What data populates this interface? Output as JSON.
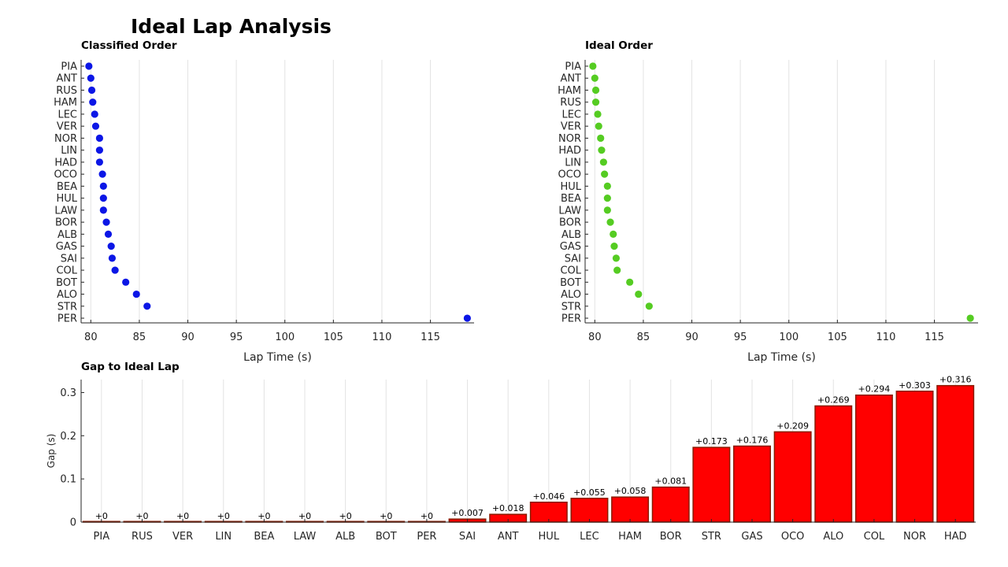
{
  "title": "Ideal Lap Analysis",
  "colors": {
    "classified": "#0b16e6",
    "ideal": "#55cc22",
    "bar": "#ff0000",
    "bar_edge": "#8b1a00"
  },
  "chart_data": [
    {
      "type": "scatter",
      "title": "Classified Order",
      "xlabel": "Lap Time (s)",
      "ylabel": "",
      "xlim": [
        79,
        119.5
      ],
      "xticks": [
        80,
        85,
        90,
        95,
        100,
        105,
        110,
        115
      ],
      "grid": true,
      "categories": [
        "PIA",
        "ANT",
        "RUS",
        "HAM",
        "LEC",
        "VER",
        "NOR",
        "LIN",
        "HAD",
        "OCO",
        "BEA",
        "HUL",
        "LAW",
        "BOR",
        "ALB",
        "GAS",
        "SAI",
        "COL",
        "BOT",
        "ALO",
        "STR",
        "PER"
      ],
      "values": [
        79.8,
        80.0,
        80.1,
        80.2,
        80.4,
        80.5,
        80.9,
        80.9,
        80.9,
        81.2,
        81.3,
        81.3,
        81.3,
        81.6,
        81.8,
        82.1,
        82.2,
        82.5,
        83.6,
        84.7,
        85.8,
        118.8
      ]
    },
    {
      "type": "scatter",
      "title": "Ideal Order",
      "xlabel": "Lap Time (s)",
      "ylabel": "",
      "xlim": [
        79,
        119.5
      ],
      "xticks": [
        80,
        85,
        90,
        95,
        100,
        105,
        110,
        115
      ],
      "grid": true,
      "categories": [
        "PIA",
        "ANT",
        "HAM",
        "RUS",
        "LEC",
        "VER",
        "NOR",
        "HAD",
        "LIN",
        "OCO",
        "HUL",
        "BEA",
        "LAW",
        "BOR",
        "ALB",
        "GAS",
        "SAI",
        "COL",
        "BOT",
        "ALO",
        "STR",
        "PER"
      ],
      "values": [
        79.8,
        80.0,
        80.1,
        80.1,
        80.3,
        80.4,
        80.6,
        80.7,
        80.9,
        81.0,
        81.3,
        81.3,
        81.3,
        81.6,
        81.9,
        82.0,
        82.2,
        82.3,
        83.6,
        84.5,
        85.6,
        118.7
      ]
    },
    {
      "type": "bar",
      "title": "Gap to Ideal Lap",
      "xlabel": "",
      "ylabel": "Gap (s)",
      "ylim": [
        0,
        0.33
      ],
      "yticks": [
        0,
        0.1,
        0.2,
        0.3
      ],
      "grid": true,
      "categories": [
        "PIA",
        "RUS",
        "VER",
        "LIN",
        "BEA",
        "LAW",
        "ALB",
        "BOT",
        "PER",
        "SAI",
        "ANT",
        "HUL",
        "LEC",
        "HAM",
        "BOR",
        "STR",
        "GAS",
        "OCO",
        "ALO",
        "COL",
        "NOR",
        "HAD"
      ],
      "values": [
        0,
        0,
        0,
        0,
        0,
        0,
        0,
        0,
        0,
        0.007,
        0.018,
        0.046,
        0.055,
        0.058,
        0.081,
        0.173,
        0.176,
        0.209,
        0.269,
        0.294,
        0.303,
        0.316
      ],
      "labels": [
        "+0",
        "+0",
        "+0",
        "+0",
        "+0",
        "+0",
        "+0",
        "+0",
        "+0",
        "+0.007",
        "+0.018",
        "+0.046",
        "+0.055",
        "+0.058",
        "+0.081",
        "+0.173",
        "+0.176",
        "+0.209",
        "+0.269",
        "+0.294",
        "+0.303",
        "+0.316"
      ]
    }
  ]
}
